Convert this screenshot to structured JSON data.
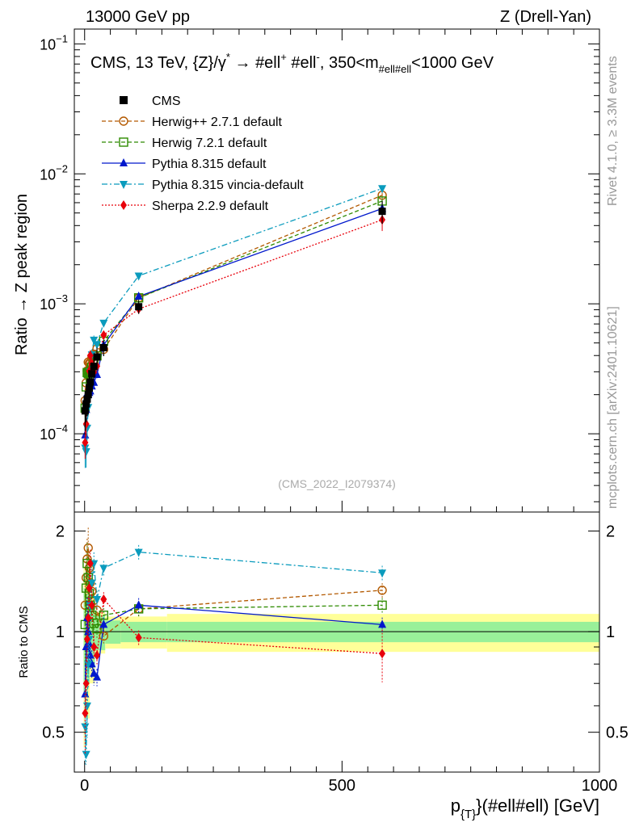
{
  "header": {
    "left": "13000 GeV pp",
    "right": "Z (Drell-Yan)"
  },
  "side_labels": {
    "rivet": "Rivet 4.1.0, ≥ 3.3M events",
    "mcplots": "mcplots.cern.ch [arXiv:2401.10621]"
  },
  "chart_data": {
    "type": "line",
    "title_parts": {
      "prefix": "CMS, 13 TeV, {Z}/γ",
      "star": "*",
      "arrow": " → ",
      "lep1": "#ell",
      "plus": "+",
      "lep2": " #ell",
      "minus": "-",
      "mass_pre": ", 350<m",
      "mass_sub": "#ell#ell",
      "mass_post": "<1000 GeV"
    },
    "watermark": "(CMS_2022_I2079374)",
    "ylabel": "Ratio → Z peak region",
    "ratio_ylabel": "Ratio to CMS",
    "xlabel_parts": {
      "p": "p",
      "sub": "{T}",
      "rest": "}(#ell#ell) [GeV]"
    },
    "xlim": [
      -20,
      1000
    ],
    "ylim_log": [
      2.5e-05,
      0.13
    ],
    "ratio_ylim": [
      0.38,
      2.28
    ],
    "x_ticks": [
      {
        "value": 0,
        "label": "0"
      },
      {
        "value": 500,
        "label": "500"
      },
      {
        "value": 1000,
        "label": "1000"
      }
    ],
    "y_ticks": [
      {
        "value": 0.0001,
        "base": "10",
        "exp": "−4"
      },
      {
        "value": 0.001,
        "base": "10",
        "exp": "−3"
      },
      {
        "value": 0.01,
        "base": "10",
        "exp": "−2"
      },
      {
        "value": 0.1,
        "base": "10",
        "exp": "−1"
      }
    ],
    "ratio_ticks": [
      {
        "value": 0.5,
        "label": "0.5"
      },
      {
        "value": 1,
        "label": "1"
      },
      {
        "value": 2,
        "label": "2"
      }
    ],
    "x": [
      1,
      3,
      5,
      7,
      9,
      11,
      14,
      18,
      24,
      37,
      105,
      578
    ],
    "data": {
      "name": "CMS",
      "values": [
        0.00015,
        0.00017,
        0.000185,
        0.0002,
        0.000225,
        0.00025,
        0.00029,
        0.00033,
        0.00039,
        0.00046,
        0.00095,
        0.00515
      ],
      "rel_err": [
        0.3,
        0.28,
        0.26,
        0.25,
        0.24,
        0.23,
        0.22,
        0.2,
        0.18,
        0.14,
        0.12,
        0.2
      ]
    },
    "band": {
      "x_edges": [
        -2,
        0,
        10,
        20,
        40,
        70,
        160,
        1000
      ],
      "stat": [
        0.35,
        0.3,
        0.22,
        0.12,
        0.08,
        0.07,
        0.07
      ],
      "total": [
        0.55,
        0.45,
        0.3,
        0.14,
        0.11,
        0.11,
        0.13
      ]
    },
    "series": [
      {
        "name": "Herwig++ 2.7.1 default",
        "color": "#b35900",
        "dash": "5,3",
        "marker": "circle-open",
        "ratio": [
          1.2,
          1.45,
          1.65,
          1.78,
          1.55,
          1.4,
          1.32,
          1.24,
          1.16,
          0.97,
          1.17,
          1.33
        ],
        "rel_err": [
          0.25,
          0.2,
          0.15,
          0.15,
          0.12,
          0.1,
          0.1,
          0.08,
          0.06,
          0.05,
          0.05,
          0.05
        ]
      },
      {
        "name": "Herwig 7.2.1 default",
        "color": "#2e8b00",
        "dash": "5,3",
        "marker": "square-open",
        "ratio": [
          1.05,
          1.35,
          1.6,
          1.45,
          1.3,
          1.2,
          1.12,
          1.06,
          1.02,
          1.12,
          1.17,
          1.2
        ],
        "rel_err": [
          0.25,
          0.2,
          0.15,
          0.15,
          0.12,
          0.1,
          0.1,
          0.08,
          0.06,
          0.05,
          0.05,
          0.05
        ]
      },
      {
        "name": "Pythia 8.315 default",
        "color": "#0018cc",
        "dash": "",
        "marker": "triangle-up",
        "ratio": [
          0.65,
          0.9,
          1.1,
          1.0,
          0.92,
          0.85,
          0.8,
          0.75,
          0.73,
          1.05,
          1.2,
          1.05
        ],
        "rel_err": [
          0.25,
          0.2,
          0.15,
          0.15,
          0.12,
          0.1,
          0.1,
          0.08,
          0.06,
          0.05,
          0.05,
          0.05
        ]
      },
      {
        "name": "Pythia 8.315 vincia-default",
        "color": "#0a9bbd",
        "dash": "7,3,2,3",
        "marker": "triangle-down",
        "ratio": [
          0.52,
          0.43,
          0.6,
          0.8,
          0.95,
          1.2,
          1.4,
          1.6,
          1.25,
          1.55,
          1.73,
          1.5
        ],
        "rel_err": [
          0.3,
          0.25,
          0.2,
          0.15,
          0.12,
          0.1,
          0.1,
          0.08,
          0.06,
          0.05,
          0.05,
          0.05
        ]
      },
      {
        "name": "Sherpa 2.2.9 default",
        "color": "#e8000b",
        "dash": "2,2",
        "marker": "diamond",
        "ratio": [
          0.57,
          0.7,
          0.95,
          1.1,
          1.35,
          1.6,
          1.2,
          0.9,
          0.85,
          1.25,
          0.96,
          0.86
        ],
        "rel_err": [
          0.25,
          0.2,
          0.15,
          0.15,
          0.12,
          0.1,
          0.1,
          0.08,
          0.06,
          0.05,
          0.05,
          0.18
        ]
      }
    ]
  }
}
